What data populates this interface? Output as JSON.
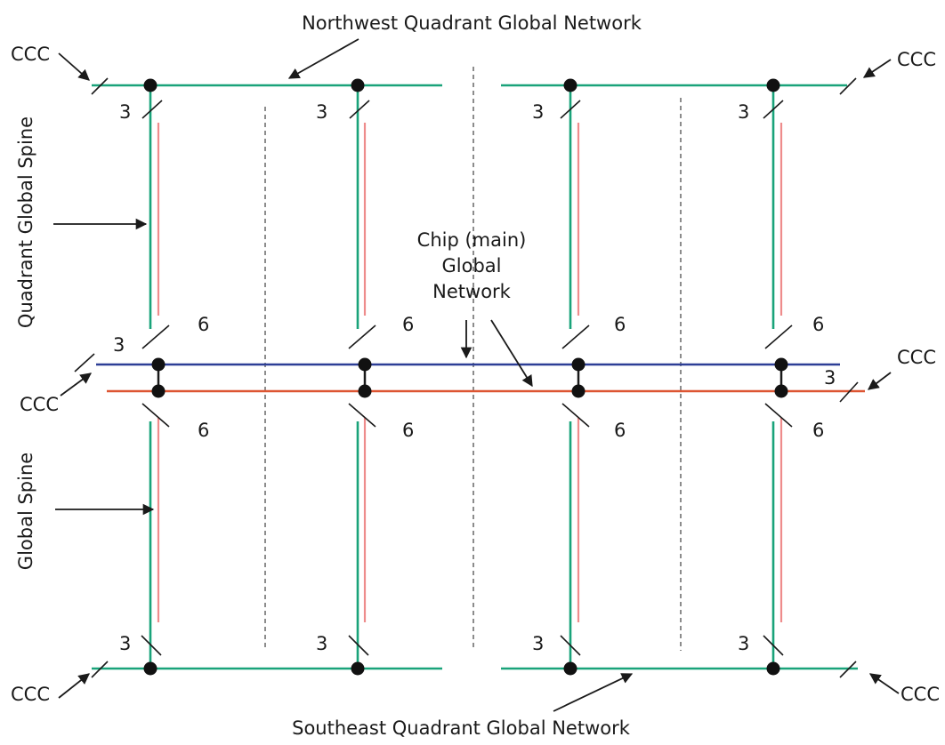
{
  "labels": {
    "top_network": "Northwest Quadrant Global Network",
    "bottom_network": "Southeast Quadrant Global Network",
    "left_spine_upper": "Quadrant Global Spine",
    "left_spine_lower": "Global Spine",
    "chip_line1": "Chip (main)",
    "chip_line2": "Global",
    "chip_line3": "Network",
    "ccc": "CCC"
  },
  "widths": {
    "quadrant": "3",
    "chip": "6"
  },
  "colors": {
    "quadrant_network": "#1aa37a",
    "spine_return": "#ee8c8c",
    "chip_blue": "#2d3e96",
    "chip_red": "#dd5532",
    "ink": "#1a1a1a"
  }
}
